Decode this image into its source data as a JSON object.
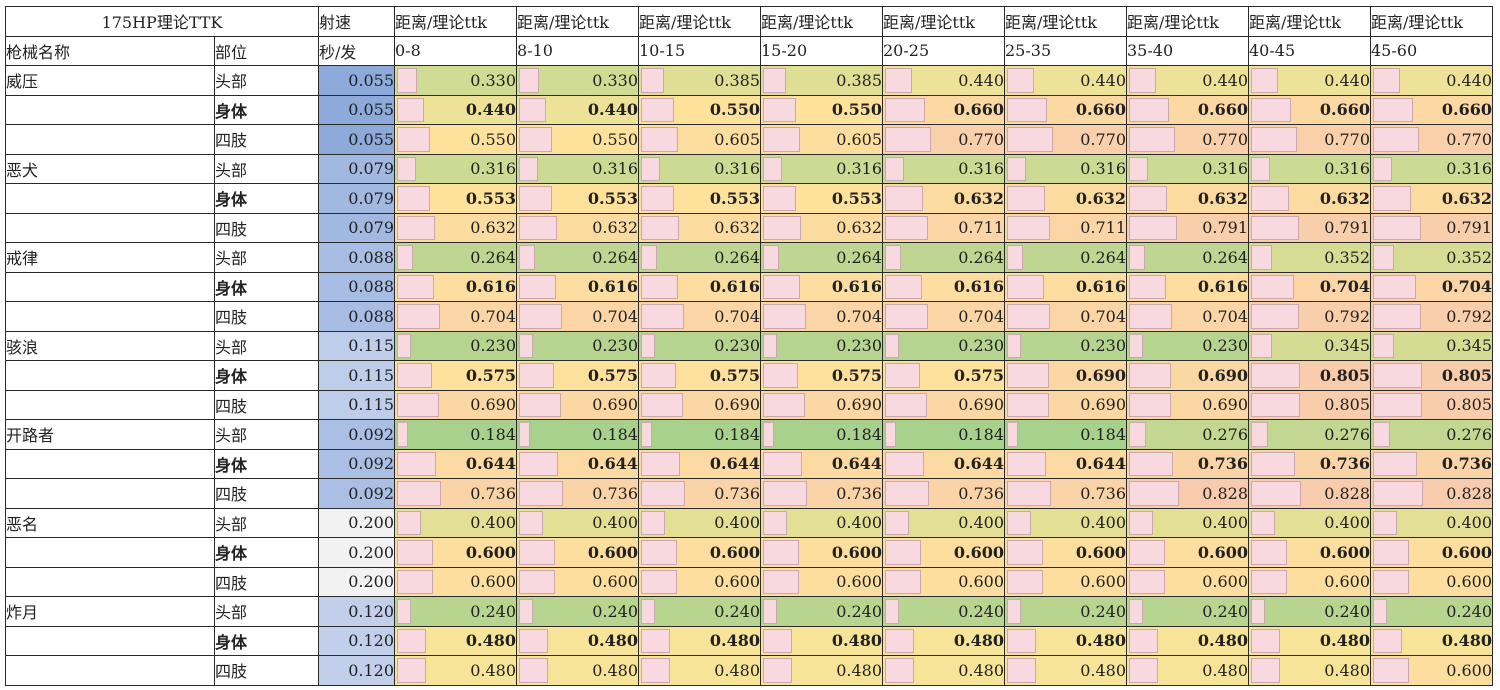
{
  "sheet": {
    "title": "175HP理论TTK",
    "rate_header": "射速",
    "rate_unit": "秒/发",
    "col_name_header": "枪械名称",
    "col_part_header": "部位",
    "range_header": "距离/理论ttk",
    "ranges": [
      "0-8",
      "8-10",
      "10-15",
      "15-20",
      "20-25",
      "25-35",
      "35-40",
      "40-45",
      "45-60"
    ]
  },
  "colors": {
    "rate_scale": [
      "#8eaadb",
      "#b4c6e7",
      "#d9e1f2",
      "#f2f2f2"
    ],
    "ttk_scale_low": "#a9d18e",
    "ttk_scale_mid": "#ffe699",
    "ttk_scale_high": "#f8cbad",
    "databar": "#f9d9e0"
  },
  "weapons": [
    {
      "name": "威压",
      "rows": [
        {
          "part": "头部",
          "rate": "0.055",
          "vals": [
            "0.330",
            "0.330",
            "0.385",
            "0.385",
            "0.440",
            "0.440",
            "0.440",
            "0.440",
            "0.440"
          ]
        },
        {
          "part": "身体",
          "rate": "0.055",
          "vals": [
            "0.440",
            "0.440",
            "0.550",
            "0.550",
            "0.660",
            "0.660",
            "0.660",
            "0.660",
            "0.660"
          ]
        },
        {
          "part": "四肢",
          "rate": "0.055",
          "vals": [
            "0.550",
            "0.550",
            "0.605",
            "0.605",
            "0.770",
            "0.770",
            "0.770",
            "0.770",
            "0.770"
          ]
        }
      ]
    },
    {
      "name": "恶犬",
      "rows": [
        {
          "part": "头部",
          "rate": "0.079",
          "vals": [
            "0.316",
            "0.316",
            "0.316",
            "0.316",
            "0.316",
            "0.316",
            "0.316",
            "0.316",
            "0.316"
          ]
        },
        {
          "part": "身体",
          "rate": "0.079",
          "vals": [
            "0.553",
            "0.553",
            "0.553",
            "0.553",
            "0.632",
            "0.632",
            "0.632",
            "0.632",
            "0.632"
          ]
        },
        {
          "part": "四肢",
          "rate": "0.079",
          "vals": [
            "0.632",
            "0.632",
            "0.632",
            "0.632",
            "0.711",
            "0.711",
            "0.791",
            "0.791",
            "0.791"
          ]
        }
      ]
    },
    {
      "name": "戒律",
      "rows": [
        {
          "part": "头部",
          "rate": "0.088",
          "vals": [
            "0.264",
            "0.264",
            "0.264",
            "0.264",
            "0.264",
            "0.264",
            "0.264",
            "0.352",
            "0.352"
          ]
        },
        {
          "part": "身体",
          "rate": "0.088",
          "vals": [
            "0.616",
            "0.616",
            "0.616",
            "0.616",
            "0.616",
            "0.616",
            "0.616",
            "0.704",
            "0.704"
          ]
        },
        {
          "part": "四肢",
          "rate": "0.088",
          "vals": [
            "0.704",
            "0.704",
            "0.704",
            "0.704",
            "0.704",
            "0.704",
            "0.704",
            "0.792",
            "0.792"
          ]
        }
      ]
    },
    {
      "name": "骇浪",
      "rows": [
        {
          "part": "头部",
          "rate": "0.115",
          "vals": [
            "0.230",
            "0.230",
            "0.230",
            "0.230",
            "0.230",
            "0.230",
            "0.230",
            "0.345",
            "0.345"
          ]
        },
        {
          "part": "身体",
          "rate": "0.115",
          "vals": [
            "0.575",
            "0.575",
            "0.575",
            "0.575",
            "0.575",
            "0.690",
            "0.690",
            "0.805",
            "0.805"
          ]
        },
        {
          "part": "四肢",
          "rate": "0.115",
          "vals": [
            "0.690",
            "0.690",
            "0.690",
            "0.690",
            "0.690",
            "0.690",
            "0.690",
            "0.805",
            "0.805"
          ]
        }
      ]
    },
    {
      "name": "开路者",
      "rows": [
        {
          "part": "头部",
          "rate": "0.092",
          "vals": [
            "0.184",
            "0.184",
            "0.184",
            "0.184",
            "0.184",
            "0.184",
            "0.276",
            "0.276",
            "0.276"
          ]
        },
        {
          "part": "身体",
          "rate": "0.092",
          "vals": [
            "0.644",
            "0.644",
            "0.644",
            "0.644",
            "0.644",
            "0.644",
            "0.736",
            "0.736",
            "0.736"
          ]
        },
        {
          "part": "四肢",
          "rate": "0.092",
          "vals": [
            "0.736",
            "0.736",
            "0.736",
            "0.736",
            "0.736",
            "0.736",
            "0.828",
            "0.828",
            "0.828"
          ]
        }
      ]
    },
    {
      "name": "恶名",
      "rows": [
        {
          "part": "头部",
          "rate": "0.200",
          "vals": [
            "0.400",
            "0.400",
            "0.400",
            "0.400",
            "0.400",
            "0.400",
            "0.400",
            "0.400",
            "0.400"
          ]
        },
        {
          "part": "身体",
          "rate": "0.200",
          "vals": [
            "0.600",
            "0.600",
            "0.600",
            "0.600",
            "0.600",
            "0.600",
            "0.600",
            "0.600",
            "0.600"
          ]
        },
        {
          "part": "四肢",
          "rate": "0.200",
          "vals": [
            "0.600",
            "0.600",
            "0.600",
            "0.600",
            "0.600",
            "0.600",
            "0.600",
            "0.600",
            "0.600"
          ]
        }
      ]
    },
    {
      "name": "炸月",
      "rows": [
        {
          "part": "头部",
          "rate": "0.120",
          "vals": [
            "0.240",
            "0.240",
            "0.240",
            "0.240",
            "0.240",
            "0.240",
            "0.240",
            "0.240",
            "0.240"
          ]
        },
        {
          "part": "身体",
          "rate": "0.120",
          "vals": [
            "0.480",
            "0.480",
            "0.480",
            "0.480",
            "0.480",
            "0.480",
            "0.480",
            "0.480",
            "0.480"
          ]
        },
        {
          "part": "四肢",
          "rate": "0.120",
          "vals": [
            "0.480",
            "0.480",
            "0.480",
            "0.480",
            "0.480",
            "0.480",
            "0.480",
            "0.480",
            "0.600"
          ]
        }
      ]
    }
  ]
}
